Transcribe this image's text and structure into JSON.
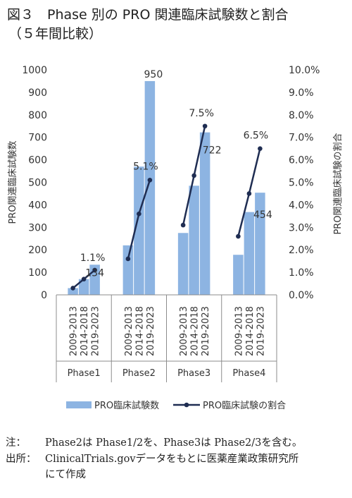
{
  "title": {
    "line1": "図３　Phase 別の PRO 関連臨床試験数と割合",
    "line2": "（５年間比較）"
  },
  "chart_data": {
    "type": "bar+line",
    "groups": [
      "Phase1",
      "Phase2",
      "Phase3",
      "Phase4"
    ],
    "periods": [
      "2009-2013",
      "2014-2018",
      "2019-2023"
    ],
    "series": [
      {
        "name": "PRO臨床試験数",
        "type": "bar",
        "axis": "left",
        "color": "#8db4e2",
        "values": [
          [
            30,
            70,
            134
          ],
          [
            220,
            570,
            950
          ],
          [
            275,
            485,
            722
          ],
          [
            178,
            368,
            454
          ]
        ]
      },
      {
        "name": "PRO臨床試験の割合",
        "type": "line",
        "axis": "right",
        "color": "#1f2d52",
        "values": [
          [
            0.3,
            0.7,
            1.1
          ],
          [
            1.6,
            3.6,
            5.1
          ],
          [
            3.1,
            5.3,
            7.5
          ],
          [
            2.6,
            4.5,
            6.5
          ]
        ]
      }
    ],
    "data_labels": [
      {
        "text": "134",
        "group": "Phase1",
        "period": "2019-2023",
        "value": 134
      },
      {
        "text": "1.1%",
        "group": "Phase1",
        "period": "2019-2023",
        "value": 1.1
      },
      {
        "text": "950",
        "group": "Phase2",
        "period": "2019-2023",
        "value": 950
      },
      {
        "text": "5.1%",
        "group": "Phase2",
        "period": "2019-2023",
        "value": 5.1
      },
      {
        "text": "722",
        "group": "Phase3",
        "period": "2019-2023",
        "value": 722
      },
      {
        "text": "7.5%",
        "group": "Phase3",
        "period": "2019-2023",
        "value": 7.5
      },
      {
        "text": "454",
        "group": "Phase4",
        "period": "2019-2023",
        "value": 454
      },
      {
        "text": "6.5%",
        "group": "Phase4",
        "period": "2019-2023",
        "value": 6.5
      }
    ],
    "ylabel_left": "PRO関連臨床試験数",
    "ylabel_right": "PRO関連臨床試験の割合",
    "ylim_left": [
      0,
      1000
    ],
    "ylim_right": [
      0,
      10
    ],
    "yticks_left": [
      "0",
      "100",
      "200",
      "300",
      "400",
      "500",
      "600",
      "700",
      "800",
      "900",
      "1000"
    ],
    "yticks_right": [
      "0.0%",
      "1.0%",
      "2.0%",
      "3.0%",
      "4.0%",
      "5.0%",
      "6.0%",
      "7.0%",
      "8.0%",
      "9.0%",
      "10.0%"
    ],
    "grid": false,
    "legend": "bottom"
  },
  "notes": {
    "note_label": "注：",
    "note_text": "Phase2は Phase1/2を、Phase3は Phase2/3を含む。",
    "source_label": "出所：",
    "source_text": "ClinicalTrials.govデータをもとに医薬産業政策研究所",
    "source_text2": "にて作成"
  }
}
